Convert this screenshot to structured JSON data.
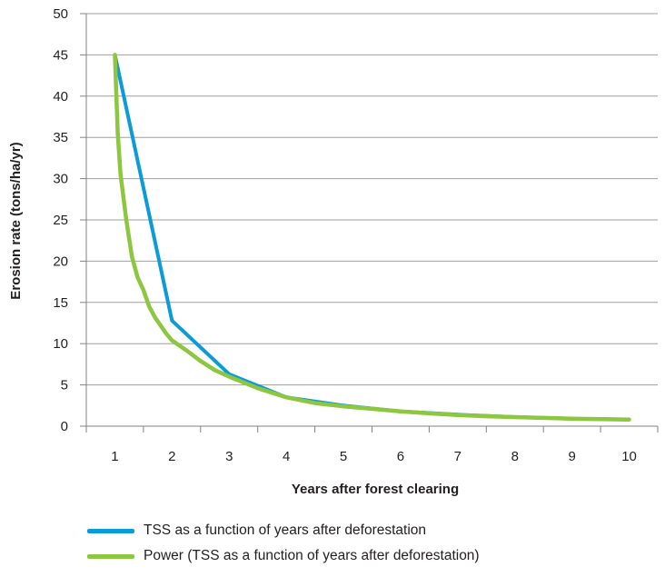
{
  "chart_data": {
    "type": "line",
    "title": "",
    "xlabel": "Years after forest clearing",
    "ylabel": "Erosion rate (tons/ha/yr)",
    "x_ticks": [
      1,
      2,
      3,
      4,
      5,
      6,
      7,
      8,
      9,
      10
    ],
    "y_ticks": [
      0,
      5,
      10,
      15,
      20,
      25,
      30,
      35,
      40,
      45,
      50
    ],
    "xlim": [
      0.5,
      10.5
    ],
    "ylim": [
      0,
      50
    ],
    "grid": "horizontal",
    "legend_position": "bottom",
    "series": [
      {
        "name": "TSS as a function of years after deforestation",
        "color": "#0b9bd7",
        "x": [
          1,
          2,
          3,
          4,
          5,
          6,
          7,
          8,
          9,
          10
        ],
        "y": [
          45,
          12.8,
          6.3,
          3.5,
          2.5,
          1.8,
          1.4,
          1.1,
          0.9,
          0.8
        ]
      },
      {
        "name": "Power (TSS as a function of years after deforestation)",
        "color": "#8dc63f",
        "x": [
          1,
          1.05,
          1.1,
          1.2,
          1.3,
          1.4,
          1.5,
          1.6,
          1.7,
          1.8,
          1.9,
          2,
          2.25,
          2.5,
          2.75,
          3,
          3.5,
          4,
          4.5,
          5,
          5.5,
          6,
          6.5,
          7,
          7.5,
          8,
          8.5,
          9,
          9.5,
          10
        ],
        "y": [
          45,
          35.5,
          30.5,
          25,
          20.5,
          18,
          16.5,
          14.5,
          13.2,
          12.2,
          11.2,
          10.4,
          9.2,
          7.9,
          6.8,
          6.0,
          4.6,
          3.5,
          2.8,
          2.4,
          2.1,
          1.8,
          1.55,
          1.35,
          1.2,
          1.1,
          1.0,
          0.9,
          0.85,
          0.8
        ]
      }
    ]
  }
}
